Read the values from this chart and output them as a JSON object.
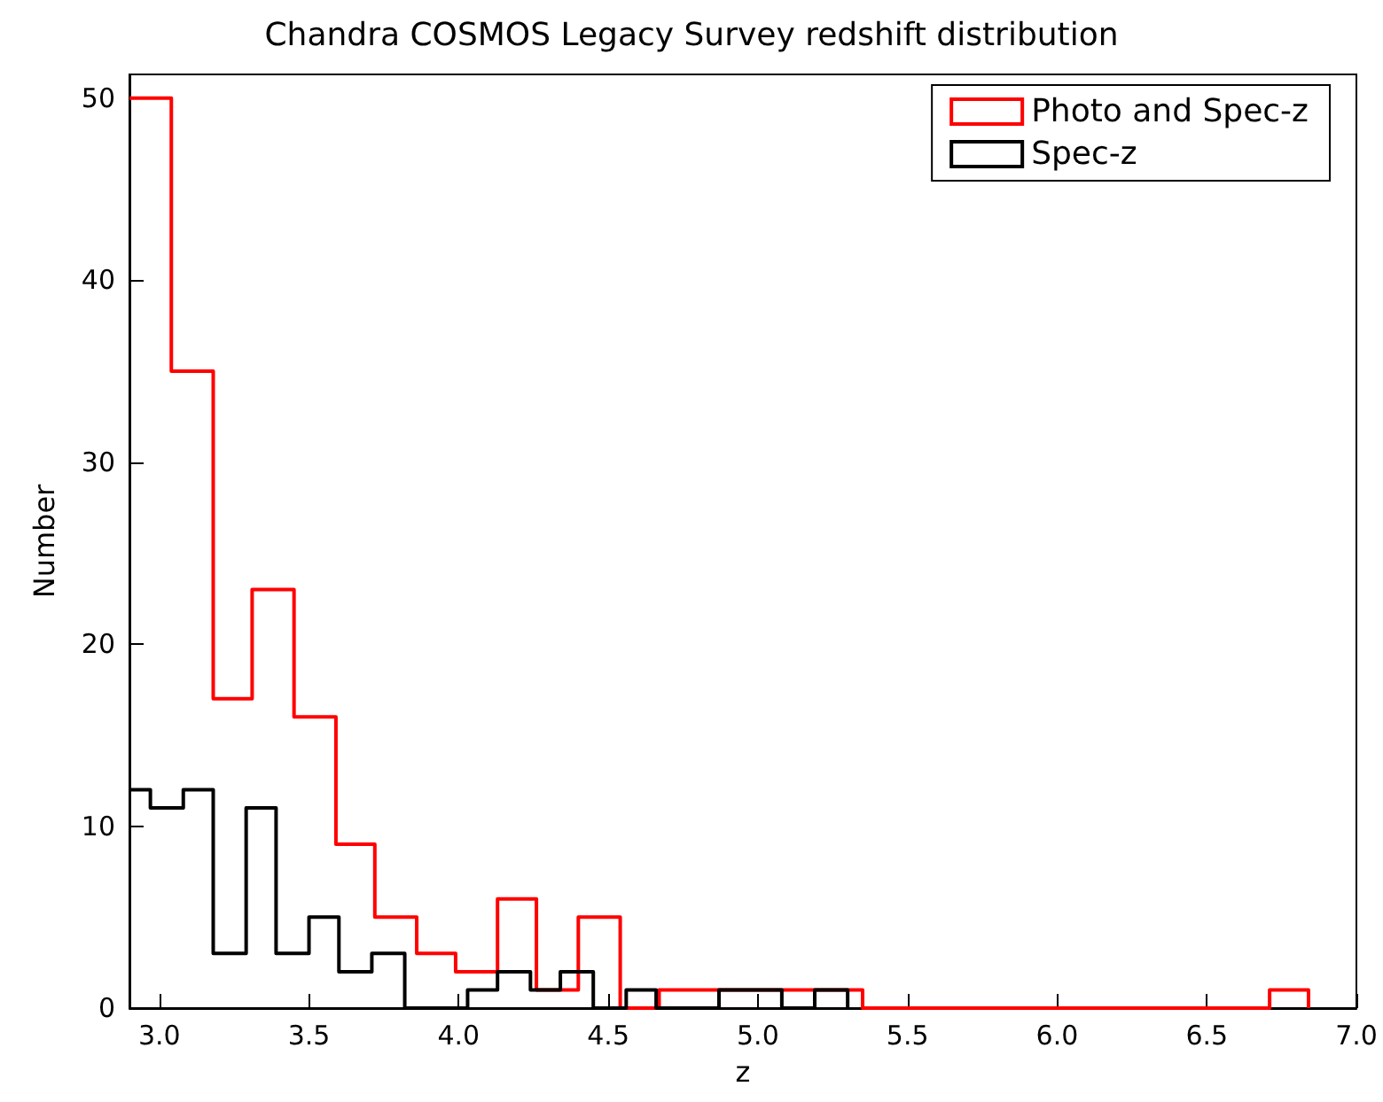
{
  "chart_data": {
    "type": "step",
    "title": "Chandra COSMOS Legacy Survey redshift distribution",
    "xlabel": "z",
    "ylabel": "Number",
    "xlim": [
      2.9,
      7.0
    ],
    "xticks": [
      {
        "value": 3,
        "label": "3.0"
      },
      3.5,
      {
        "value": 4,
        "label": "4.0"
      },
      4.5,
      {
        "value": 5,
        "label": "5.0"
      },
      5.5,
      {
        "value": 6,
        "label": "6.0"
      },
      6.5,
      {
        "value": 7,
        "label": "7.0"
      }
    ],
    "ylim": [
      0,
      51.3
    ],
    "yticks": [
      0,
      10,
      20,
      30,
      40,
      50
    ],
    "grid": false,
    "legend": "top right",
    "marker": "none",
    "series": [
      {
        "name": "Photo and Spec-z",
        "color": "#ff0000",
        "x": [
          2.9,
          3.04,
          3.18,
          3.31,
          3.45,
          3.59,
          3.72,
          3.86,
          3.99,
          4.13,
          4.26,
          4.4,
          4.54,
          4.67,
          4.81,
          4.94,
          5.08,
          5.21,
          5.35,
          5.49,
          5.62,
          5.76,
          5.89,
          6.03,
          6.16,
          6.3,
          6.44,
          6.57,
          6.71,
          6.84
        ],
        "values": [
          50,
          35,
          17,
          23,
          16,
          9,
          5,
          3,
          2,
          6,
          1,
          5,
          0,
          1,
          1,
          1,
          1,
          1,
          0,
          0,
          0,
          0,
          0,
          0,
          0,
          0,
          0,
          0,
          1,
          0
        ]
      },
      {
        "name": "Spec-z",
        "color": "#000000",
        "x": [
          2.9,
          2.97,
          3.08,
          3.18,
          3.29,
          3.39,
          3.5,
          3.6,
          3.71,
          3.82,
          3.92,
          4.03,
          4.13,
          4.24,
          4.34,
          4.45,
          4.56,
          4.66,
          4.77,
          4.87,
          4.98,
          5.08,
          5.19,
          5.3
        ],
        "values": [
          12,
          11,
          12,
          3,
          11,
          3,
          5,
          2,
          3,
          0,
          0,
          1,
          2,
          1,
          2,
          0,
          1,
          0,
          0,
          1,
          1,
          0,
          1,
          0
        ]
      }
    ]
  }
}
